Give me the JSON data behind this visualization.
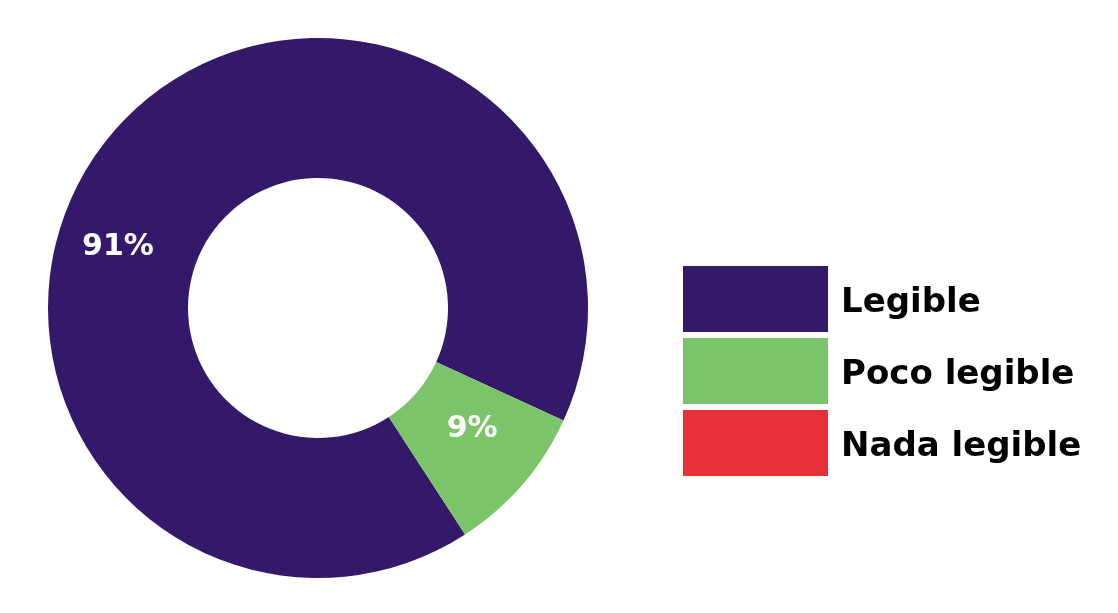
{
  "chart_data": {
    "type": "donut",
    "categories": [
      "Legible",
      "Poco legible",
      "Nada legible"
    ],
    "values": [
      91,
      9,
      0
    ],
    "colors": [
      "#34186a",
      "#7cc46a",
      "#e8303a"
    ],
    "value_labels": [
      "91%",
      "9%",
      null
    ],
    "legend": "right"
  }
}
